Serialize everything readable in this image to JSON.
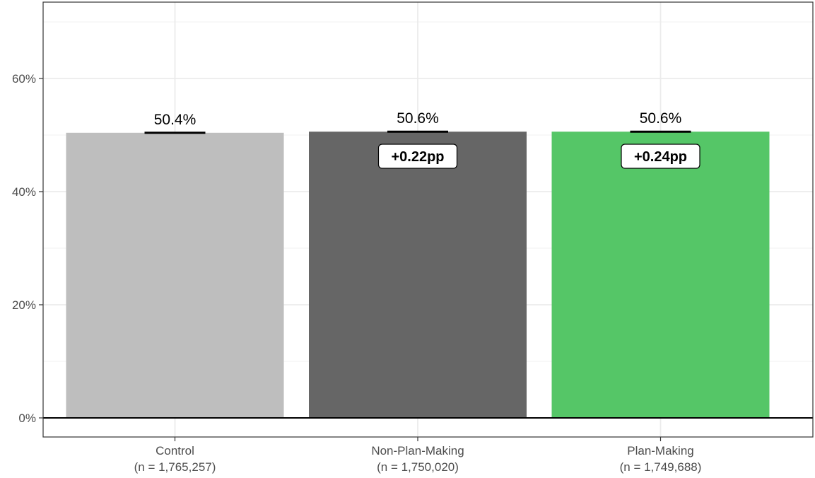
{
  "chart_data": {
    "type": "bar",
    "title": "",
    "xlabel": "",
    "ylabel": "",
    "ylim": [
      0,
      72
    ],
    "y_ticks": [
      0,
      20,
      40,
      60
    ],
    "y_tick_labels": [
      "0%",
      "20%",
      "40%",
      "60%"
    ],
    "grid": true,
    "legend": "none",
    "categories": [
      "Control",
      "Non-Plan-Making",
      "Plan-Making"
    ],
    "category_sublabels": [
      "(n = 1,765,257)",
      "(n = 1,750,020)",
      "(n = 1,749,688)"
    ],
    "values": [
      50.4,
      50.6,
      50.6
    ],
    "value_labels": [
      "50.4%",
      "50.6%",
      "50.6%"
    ],
    "differences": [
      null,
      "+0.22pp",
      "+0.24pp"
    ],
    "colors": [
      "#bebebe",
      "#666666",
      "#55c667"
    ]
  }
}
